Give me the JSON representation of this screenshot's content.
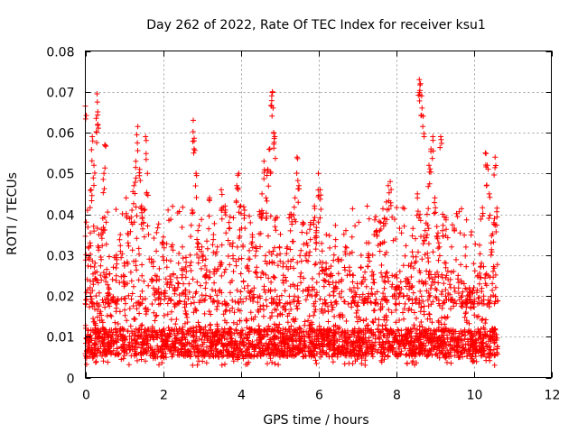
{
  "chart_data": {
    "type": "scatter",
    "title": "Day 262 of 2022, Rate Of TEC Index for receiver ksu1",
    "xlabel": "GPS time / hours",
    "ylabel": "ROTI / TECUs",
    "xlim": [
      0,
      12
    ],
    "ylim": [
      0,
      0.08
    ],
    "xticks": [
      0,
      2,
      4,
      6,
      8,
      10,
      12
    ],
    "yticks": [
      0,
      0.01,
      0.02,
      0.03,
      0.04,
      0.05,
      0.06,
      0.07,
      0.08
    ],
    "xtick_labels": [
      "0",
      "2",
      "4",
      "6",
      "8",
      "10",
      "12"
    ],
    "ytick_labels": [
      "0",
      "0.01",
      "0.02",
      "0.03",
      "0.04",
      "0.05",
      "0.06",
      "0.07",
      "0.08"
    ],
    "grid": true,
    "legend": "none",
    "marker": "plus",
    "color": "#ff0000",
    "series": [
      {
        "points": [
          [
            0.0,
            0.0665
          ],
          [
            0.05,
            0.024
          ],
          [
            0.08,
            0.032
          ],
          [
            0.12,
            0.033
          ],
          [
            0.15,
            0.046
          ],
          [
            0.18,
            0.059
          ],
          [
            0.22,
            0.052
          ],
          [
            0.25,
            0.028
          ],
          [
            0.28,
            0.0635
          ],
          [
            0.3,
            0.0695
          ],
          [
            0.32,
            0.062
          ],
          [
            0.35,
            0.035
          ],
          [
            0.4,
            0.0295
          ],
          [
            0.45,
            0.039
          ],
          [
            0.48,
            0.05
          ],
          [
            0.5,
            0.057
          ],
          [
            0.55,
            0.0265
          ],
          [
            0.6,
            0.022
          ],
          [
            0.7,
            0.024
          ],
          [
            0.8,
            0.03
          ],
          [
            0.9,
            0.035
          ],
          [
            1.0,
            0.028
          ],
          [
            1.05,
            0.044
          ],
          [
            1.1,
            0.033
          ],
          [
            1.2,
            0.041
          ],
          [
            1.25,
            0.047
          ],
          [
            1.3,
            0.053
          ],
          [
            1.35,
            0.0615
          ],
          [
            1.4,
            0.051
          ],
          [
            1.45,
            0.042
          ],
          [
            1.5,
            0.038
          ],
          [
            1.55,
            0.059
          ],
          [
            1.6,
            0.05
          ],
          [
            1.7,
            0.029
          ],
          [
            1.8,
            0.025
          ],
          [
            1.9,
            0.024
          ],
          [
            2.0,
            0.033
          ],
          [
            2.1,
            0.027
          ],
          [
            2.2,
            0.024
          ],
          [
            2.3,
            0.022
          ],
          [
            2.4,
            0.028
          ],
          [
            2.5,
            0.032
          ],
          [
            2.6,
            0.026
          ],
          [
            2.7,
            0.03
          ],
          [
            2.75,
            0.041
          ],
          [
            2.78,
            0.063
          ],
          [
            2.8,
            0.058
          ],
          [
            2.85,
            0.05
          ],
          [
            2.9,
            0.036
          ],
          [
            3.0,
            0.032
          ],
          [
            3.1,
            0.029
          ],
          [
            3.2,
            0.044
          ],
          [
            3.3,
            0.035
          ],
          [
            3.4,
            0.032
          ],
          [
            3.5,
            0.046
          ],
          [
            3.6,
            0.042
          ],
          [
            3.7,
            0.038
          ],
          [
            3.8,
            0.033
          ],
          [
            3.9,
            0.047
          ],
          [
            3.95,
            0.05
          ],
          [
            4.0,
            0.042
          ],
          [
            4.1,
            0.041
          ],
          [
            4.2,
            0.029
          ],
          [
            4.3,
            0.035
          ],
          [
            4.4,
            0.031
          ],
          [
            4.5,
            0.04
          ],
          [
            4.55,
            0.045
          ],
          [
            4.6,
            0.053
          ],
          [
            4.65,
            0.044
          ],
          [
            4.7,
            0.051
          ],
          [
            4.75,
            0.056
          ],
          [
            4.8,
            0.069
          ],
          [
            4.82,
            0.07
          ],
          [
            4.85,
            0.06
          ],
          [
            4.88,
            0.059
          ],
          [
            4.9,
            0.039
          ],
          [
            5.0,
            0.032
          ],
          [
            5.1,
            0.028
          ],
          [
            5.2,
            0.032
          ],
          [
            5.3,
            0.04
          ],
          [
            5.4,
            0.044
          ],
          [
            5.45,
            0.054
          ],
          [
            5.5,
            0.047
          ],
          [
            5.6,
            0.038
          ],
          [
            5.7,
            0.033
          ],
          [
            5.8,
            0.038
          ],
          [
            5.9,
            0.042
          ],
          [
            5.95,
            0.036
          ],
          [
            6.0,
            0.05
          ],
          [
            6.05,
            0.046
          ],
          [
            6.1,
            0.031
          ],
          [
            6.2,
            0.028
          ],
          [
            6.3,
            0.025
          ],
          [
            6.4,
            0.022
          ],
          [
            6.5,
            0.029
          ],
          [
            6.6,
            0.024
          ],
          [
            6.7,
            0.032
          ],
          [
            6.8,
            0.027
          ],
          [
            6.9,
            0.025
          ],
          [
            7.0,
            0.023
          ],
          [
            7.1,
            0.027
          ],
          [
            7.2,
            0.024
          ],
          [
            7.3,
            0.033
          ],
          [
            7.4,
            0.03
          ],
          [
            7.5,
            0.036
          ],
          [
            7.6,
            0.038
          ],
          [
            7.7,
            0.039
          ],
          [
            7.75,
            0.043
          ],
          [
            7.8,
            0.047
          ],
          [
            7.85,
            0.048
          ],
          [
            7.9,
            0.025
          ],
          [
            8.0,
            0.022
          ],
          [
            8.1,
            0.026
          ],
          [
            8.2,
            0.02
          ],
          [
            8.3,
            0.024
          ],
          [
            8.4,
            0.028
          ],
          [
            8.5,
            0.034
          ],
          [
            8.55,
            0.045
          ],
          [
            8.6,
            0.073
          ],
          [
            8.63,
            0.072
          ],
          [
            8.66,
            0.069
          ],
          [
            8.7,
            0.064
          ],
          [
            8.75,
            0.036
          ],
          [
            8.8,
            0.04
          ],
          [
            8.85,
            0.052
          ],
          [
            8.9,
            0.056
          ],
          [
            8.95,
            0.059
          ],
          [
            9.0,
            0.044
          ],
          [
            9.05,
            0.037
          ],
          [
            9.1,
            0.033
          ],
          [
            9.15,
            0.059
          ],
          [
            9.2,
            0.04
          ],
          [
            9.3,
            0.025
          ],
          [
            9.4,
            0.024
          ],
          [
            9.5,
            0.022
          ],
          [
            9.6,
            0.025
          ],
          [
            9.7,
            0.02
          ],
          [
            9.8,
            0.019
          ],
          [
            9.9,
            0.021
          ],
          [
            10.0,
            0.022
          ],
          [
            10.1,
            0.025
          ],
          [
            10.2,
            0.028
          ],
          [
            10.3,
            0.055
          ],
          [
            10.35,
            0.052
          ],
          [
            10.4,
            0.045
          ],
          [
            10.45,
            0.033
          ],
          [
            10.5,
            0.026
          ],
          [
            10.55,
            0.054
          ],
          [
            10.6,
            0.0415
          ]
        ],
        "dense_band": [
          {
            "x_range": [
              0.0,
              10.65
            ],
            "y_floor": 0.003,
            "y_typical": [
              0.005,
              0.012
            ],
            "y_spread_max": 0.026
          }
        ]
      }
    ]
  }
}
